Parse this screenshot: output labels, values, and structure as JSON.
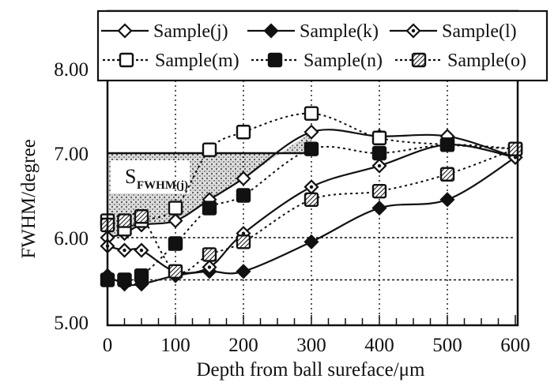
{
  "chart_data": {
    "type": "line",
    "title": "",
    "xlabel": "Depth from ball sureface/μm",
    "ylabel": "FWHM/degree",
    "xlim": [
      0,
      600
    ],
    "ylim": [
      5.0,
      8.0
    ],
    "x_ticks": [
      "0",
      "100",
      "200",
      "300",
      "400",
      "500",
      "600"
    ],
    "y_ticks": [
      "5.00",
      "6.00",
      "7.00",
      "8.00"
    ],
    "grid": false,
    "legend_position": "top",
    "x": [
      0,
      25,
      50,
      100,
      150,
      200,
      300,
      400,
      500,
      600
    ],
    "series": [
      {
        "name": "Sample(j)",
        "marker": "open-diamond",
        "line": "solid",
        "values": [
          6.0,
          6.05,
          6.15,
          6.2,
          6.45,
          6.7,
          7.25,
          7.2,
          7.2,
          6.95
        ]
      },
      {
        "name": "Sample(k)",
        "marker": "filled-diamond",
        "line": "solid",
        "values": [
          5.55,
          5.45,
          5.45,
          5.55,
          5.6,
          5.6,
          5.95,
          6.35,
          6.45,
          6.95
        ]
      },
      {
        "name": "Sample(l)",
        "marker": "dotted-diamond",
        "line": "solid",
        "values": [
          5.9,
          5.85,
          5.85,
          5.6,
          5.65,
          6.05,
          6.6,
          6.85,
          7.1,
          6.95
        ]
      },
      {
        "name": "Sample(m)",
        "marker": "open-square",
        "line": "dotted",
        "values": [
          6.2,
          6.1,
          6.2,
          6.35,
          7.04,
          7.25,
          7.47,
          7.18,
          7.1,
          7.05
        ]
      },
      {
        "name": "Sample(n)",
        "marker": "filled-square",
        "line": "dotted",
        "values": [
          5.5,
          5.5,
          5.55,
          5.93,
          6.35,
          6.5,
          7.05,
          7.0,
          7.1,
          7.05
        ]
      },
      {
        "name": "Sample(o)",
        "marker": "hatched-square",
        "line": "dotted",
        "values": [
          6.15,
          6.2,
          6.25,
          5.6,
          5.8,
          5.95,
          6.45,
          6.55,
          6.75,
          7.05
        ]
      }
    ],
    "annotations": [
      {
        "text": "S",
        "subscript": "FWHM(j)",
        "note": "shaded area between Sample(j) curve and 7.00 level from 0 to ~300 μm"
      }
    ],
    "reference_lines": [
      {
        "y": 7.0,
        "x_from": 0,
        "x_to": 300,
        "style": "solid"
      },
      {
        "y": 5.5,
        "x_from": 0,
        "x_to": 600,
        "style": "dotted"
      },
      {
        "y": 6.0,
        "x_from": 0,
        "x_to": 600,
        "style": "dotted"
      }
    ]
  },
  "legend": {
    "items": [
      {
        "label": "Sample(j)"
      },
      {
        "label": "Sample(k)"
      },
      {
        "label": "Sample(l)"
      },
      {
        "label": "Sample(m)"
      },
      {
        "label": "Sample(n)"
      },
      {
        "label": "Sample(o)"
      }
    ]
  },
  "annotation": {
    "main": "S",
    "sub": "FWHM(j)"
  },
  "axes": {
    "xlabel": "Depth from ball sureface/μm",
    "ylabel": "FWHM/degree"
  },
  "colors": {
    "ink": "#111111",
    "shade": "#8a8a8a",
    "background": "#ffffff"
  }
}
